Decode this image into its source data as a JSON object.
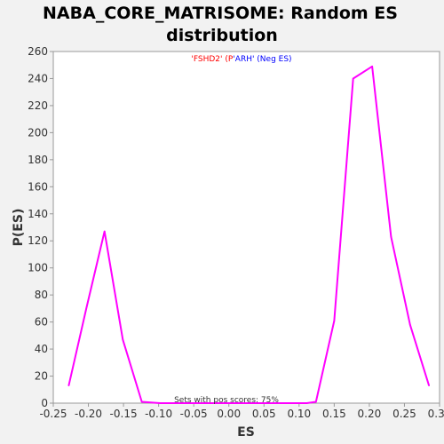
{
  "chart_data": {
    "type": "line",
    "title_lines": [
      "NABA_CORE_MATRISOME: Random ES",
      "distribution"
    ],
    "xlabel": "ES",
    "ylabel": "P(ES)",
    "xlim": [
      -0.25,
      0.3
    ],
    "ylim": [
      0,
      260
    ],
    "x_ticks": [
      -0.25,
      -0.2,
      -0.15,
      -0.1,
      -0.05,
      0.0,
      0.05,
      0.1,
      0.15,
      0.2,
      0.25,
      0.3
    ],
    "x_tick_labels": [
      "-0.25",
      "-0.20",
      "-0.15",
      "-0.10",
      "-0.05",
      "0.00",
      "0.05",
      "0.10",
      "0.15",
      "0.20",
      "0.25",
      "0.30"
    ],
    "y_ticks": [
      0,
      20,
      40,
      60,
      80,
      100,
      120,
      140,
      160,
      180,
      200,
      220,
      240,
      260
    ],
    "grid": false,
    "legend": {
      "placement": "top-center",
      "parts": [
        {
          "text": "'FSHD2' (P",
          "color": "#ff0000"
        },
        {
          "text": "'ARH' (Neg ES)",
          "color": "#0000ff"
        }
      ]
    },
    "annotation": "Sets with pos scores: 75%",
    "series": [
      {
        "color": "#ff00ff",
        "x": [
          -0.228,
          -0.203,
          -0.177,
          -0.151,
          -0.124,
          -0.098,
          -0.071,
          -0.045,
          -0.019,
          0.007,
          0.033,
          0.059,
          0.085,
          0.111,
          0.124,
          0.15,
          0.177,
          0.204,
          0.231,
          0.258,
          0.285
        ],
        "y": [
          13,
          70,
          127,
          47,
          1,
          0,
          0,
          0,
          0,
          0,
          0,
          0,
          0,
          0,
          1,
          61,
          240,
          249,
          123,
          58,
          13
        ]
      }
    ]
  }
}
